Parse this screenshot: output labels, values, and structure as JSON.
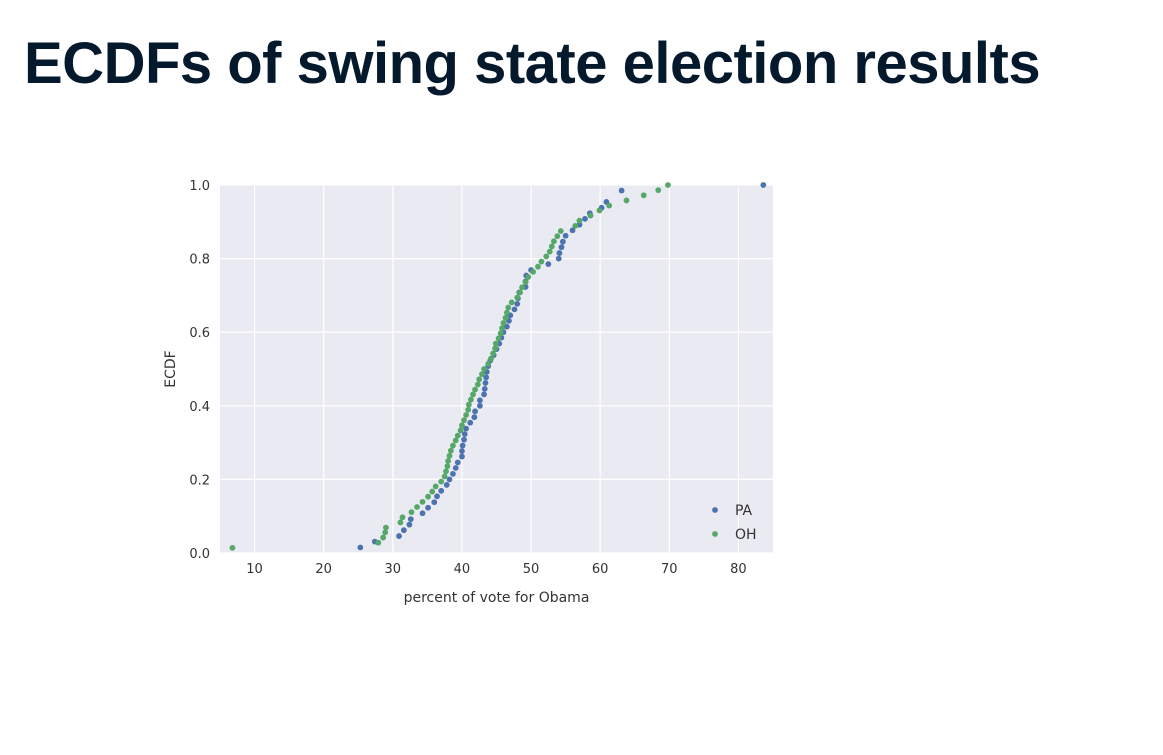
{
  "slide": {
    "title": "ECDFs of swing state election results"
  },
  "colors": {
    "background": "#eaeaf2",
    "grid": "#ffffff",
    "PA": "#4c72b0",
    "OH": "#55a868",
    "title": "#05192d"
  },
  "chart_data": {
    "type": "scatter",
    "title": "",
    "xlabel": "percent of vote for Obama",
    "ylabel": "ECDF",
    "xlim": [
      5,
      85
    ],
    "ylim": [
      0,
      1
    ],
    "xticks": [
      10,
      20,
      30,
      40,
      50,
      60,
      70,
      80
    ],
    "yticks": [
      0.0,
      0.2,
      0.4,
      0.6,
      0.8,
      1.0
    ],
    "xtick_labels": [
      "10",
      "20",
      "30",
      "40",
      "50",
      "60",
      "70",
      "80"
    ],
    "ytick_labels": [
      "0.0",
      "0.2",
      "0.4",
      "0.6",
      "0.8",
      "1.0"
    ],
    "grid": true,
    "legend": "bottom-right",
    "series": [
      {
        "name": "PA",
        "color": "#4c72b0",
        "x": [
          25.3,
          27.4,
          30.9,
          31.6,
          32.4,
          32.6,
          34.3,
          35.1,
          36.0,
          36.4,
          37.0,
          37.8,
          38.2,
          38.7,
          39.1,
          39.4,
          40.0,
          40.0,
          40.1,
          40.3,
          40.4,
          40.6,
          41.2,
          41.8,
          41.9,
          42.6,
          42.6,
          43.2,
          43.3,
          43.4,
          43.5,
          43.6,
          43.8,
          44.1,
          44.6,
          45.0,
          45.4,
          45.7,
          46.0,
          46.5,
          46.8,
          47.0,
          47.6,
          48.0,
          48.1,
          48.3,
          49.2,
          49.2,
          49.3,
          50.0,
          52.5,
          54.0,
          54.1,
          54.4,
          54.6,
          55.0,
          56.0,
          57.0,
          57.8,
          58.5,
          60.2,
          60.9,
          63.1,
          83.6
        ],
        "y": [
          0.015,
          0.031,
          0.046,
          0.062,
          0.077,
          0.092,
          0.108,
          0.123,
          0.138,
          0.154,
          0.169,
          0.185,
          0.2,
          0.215,
          0.231,
          0.246,
          0.262,
          0.277,
          0.292,
          0.308,
          0.323,
          0.338,
          0.354,
          0.369,
          0.385,
          0.4,
          0.415,
          0.431,
          0.446,
          0.462,
          0.477,
          0.492,
          0.508,
          0.523,
          0.538,
          0.554,
          0.569,
          0.585,
          0.6,
          0.615,
          0.631,
          0.646,
          0.662,
          0.677,
          0.692,
          0.708,
          0.723,
          0.738,
          0.754,
          0.769,
          0.785,
          0.8,
          0.815,
          0.831,
          0.846,
          0.862,
          0.877,
          0.892,
          0.908,
          0.923,
          0.938,
          0.954,
          0.985,
          1.0
        ]
      },
      {
        "name": "OH",
        "color": "#55a868",
        "x": [
          6.8,
          27.9,
          28.6,
          28.9,
          29.0,
          31.1,
          31.4,
          32.7,
          33.5,
          34.3,
          35.1,
          35.7,
          36.2,
          37.0,
          37.5,
          37.7,
          37.9,
          38.0,
          38.2,
          38.4,
          38.7,
          39.1,
          39.4,
          39.8,
          40.0,
          40.3,
          40.6,
          40.9,
          41.0,
          41.3,
          41.6,
          41.9,
          42.3,
          42.5,
          42.9,
          43.2,
          43.8,
          44.2,
          44.5,
          44.8,
          44.9,
          45.3,
          45.6,
          45.8,
          46.0,
          46.3,
          46.5,
          46.7,
          47.2,
          48.0,
          48.4,
          48.7,
          49.2,
          49.6,
          50.3,
          51.0,
          51.5,
          52.2,
          52.7,
          53.0,
          53.3,
          53.8,
          54.3,
          56.4,
          57.0,
          58.6,
          59.9,
          61.3,
          63.8,
          66.3,
          68.4,
          69.8
        ],
        "y": [
          0.014,
          0.028,
          0.042,
          0.056,
          0.069,
          0.083,
          0.097,
          0.111,
          0.125,
          0.139,
          0.153,
          0.167,
          0.181,
          0.194,
          0.208,
          0.222,
          0.236,
          0.25,
          0.264,
          0.278,
          0.292,
          0.306,
          0.319,
          0.333,
          0.347,
          0.361,
          0.375,
          0.389,
          0.403,
          0.417,
          0.431,
          0.444,
          0.458,
          0.472,
          0.486,
          0.5,
          0.514,
          0.528,
          0.542,
          0.556,
          0.569,
          0.583,
          0.597,
          0.611,
          0.625,
          0.639,
          0.653,
          0.667,
          0.681,
          0.694,
          0.708,
          0.722,
          0.736,
          0.75,
          0.764,
          0.778,
          0.792,
          0.806,
          0.819,
          0.833,
          0.847,
          0.861,
          0.875,
          0.889,
          0.903,
          0.917,
          0.931,
          0.944,
          0.958,
          0.972,
          0.986,
          1.0
        ]
      }
    ]
  }
}
